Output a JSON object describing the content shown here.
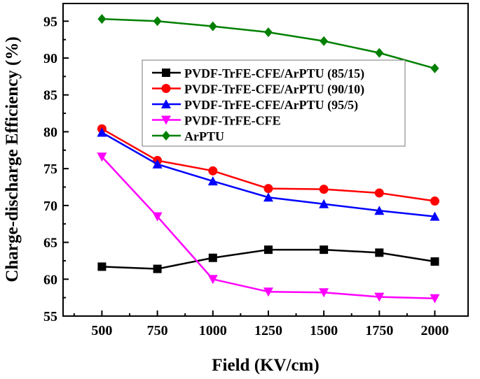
{
  "chart_data": {
    "type": "line",
    "title": "",
    "xlabel": "Field (KV/cm)",
    "ylabel": "Charge-discharge Efficiency (%)",
    "x": [
      500,
      750,
      1000,
      1250,
      1500,
      1750,
      2000
    ],
    "xlim": [
      325,
      2150
    ],
    "ylim": [
      55,
      97.4
    ],
    "xticks": [
      500,
      750,
      1000,
      1250,
      1500,
      1750,
      2000
    ],
    "yticks": [
      55,
      60,
      65,
      70,
      75,
      80,
      85,
      90,
      95
    ],
    "grid": false,
    "legend_position": "center",
    "series": [
      {
        "name": "PVDF-TrFE-CFE/ArPTU (85/15)",
        "color": "#000000",
        "marker": "square",
        "values": [
          61.7,
          61.4,
          62.9,
          64.0,
          64.0,
          63.6,
          62.4
        ]
      },
      {
        "name": "PVDF-TrFE-CFE/ArPTU (90/10)",
        "color": "#ff0000",
        "marker": "circle",
        "values": [
          80.4,
          76.1,
          74.7,
          72.3,
          72.2,
          71.7,
          70.6
        ]
      },
      {
        "name": "PVDF-TrFE-CFE/ArPTU (95/5)",
        "color": "#0000ff",
        "marker": "triangle-up",
        "values": [
          79.9,
          75.6,
          73.3,
          71.1,
          70.2,
          69.3,
          68.5
        ]
      },
      {
        "name": "PVDF-TrFE-CFE",
        "color": "#ff00ff",
        "marker": "triangle-down",
        "values": [
          76.6,
          68.5,
          60.0,
          58.3,
          58.2,
          57.6,
          57.4
        ]
      },
      {
        "name": "ArPTU",
        "color": "#008000",
        "marker": "diamond",
        "values": [
          95.3,
          95.0,
          94.3,
          93.5,
          92.3,
          90.7,
          88.6
        ]
      }
    ]
  }
}
